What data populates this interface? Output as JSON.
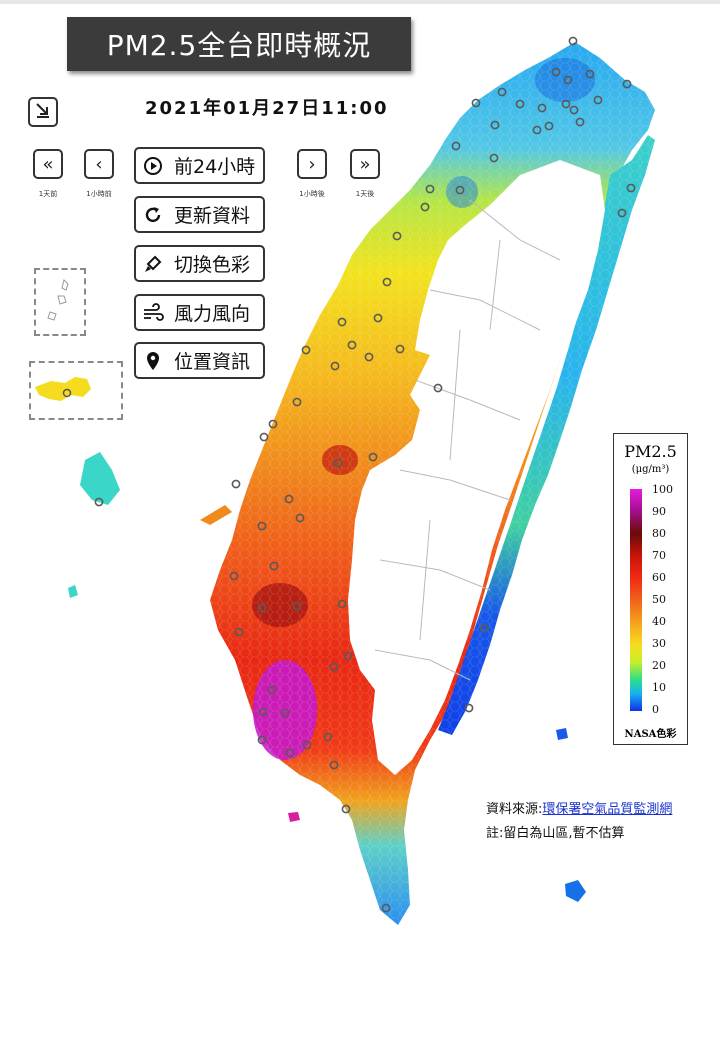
{
  "header": {
    "title": "PM2.5全台即時概況",
    "datetime": "2021年01月27日11:00"
  },
  "nav": {
    "first_label": "1天前",
    "prev_label": "1小時前",
    "next_label": "1小時後",
    "last_label": "1天後"
  },
  "menu": {
    "past24": "前24小時",
    "refresh": "更新資料",
    "color": "切換色彩",
    "wind": "風力風向",
    "location": "位置資訊"
  },
  "legend": {
    "title": "PM2.5",
    "unit": "(μg/m³)",
    "ticks": [
      "100",
      "90",
      "80",
      "70",
      "60",
      "50",
      "40",
      "30",
      "20",
      "10",
      "0"
    ],
    "scheme": "NASA色彩",
    "colors": [
      "#e81ae0",
      "#a0108a",
      "#6a0a0a",
      "#c8140a",
      "#f02a14",
      "#f0621a",
      "#f5a01e",
      "#f6dc1e",
      "#c8ee2a",
      "#2cde86",
      "#16b4f0",
      "#1030e8"
    ]
  },
  "footer": {
    "source_prefix": "資料來源:",
    "source_link": "環保署空氣品質監測網",
    "note": "註:留白為山區,暫不估算"
  },
  "icons": [
    "collapse-arrow-icon",
    "double-chevron-left-icon",
    "chevron-left-icon",
    "play-circle-icon",
    "chevron-right-icon",
    "double-chevron-right-icon",
    "refresh-icon",
    "paint-brush-icon",
    "wind-icon",
    "map-pin-icon"
  ]
}
